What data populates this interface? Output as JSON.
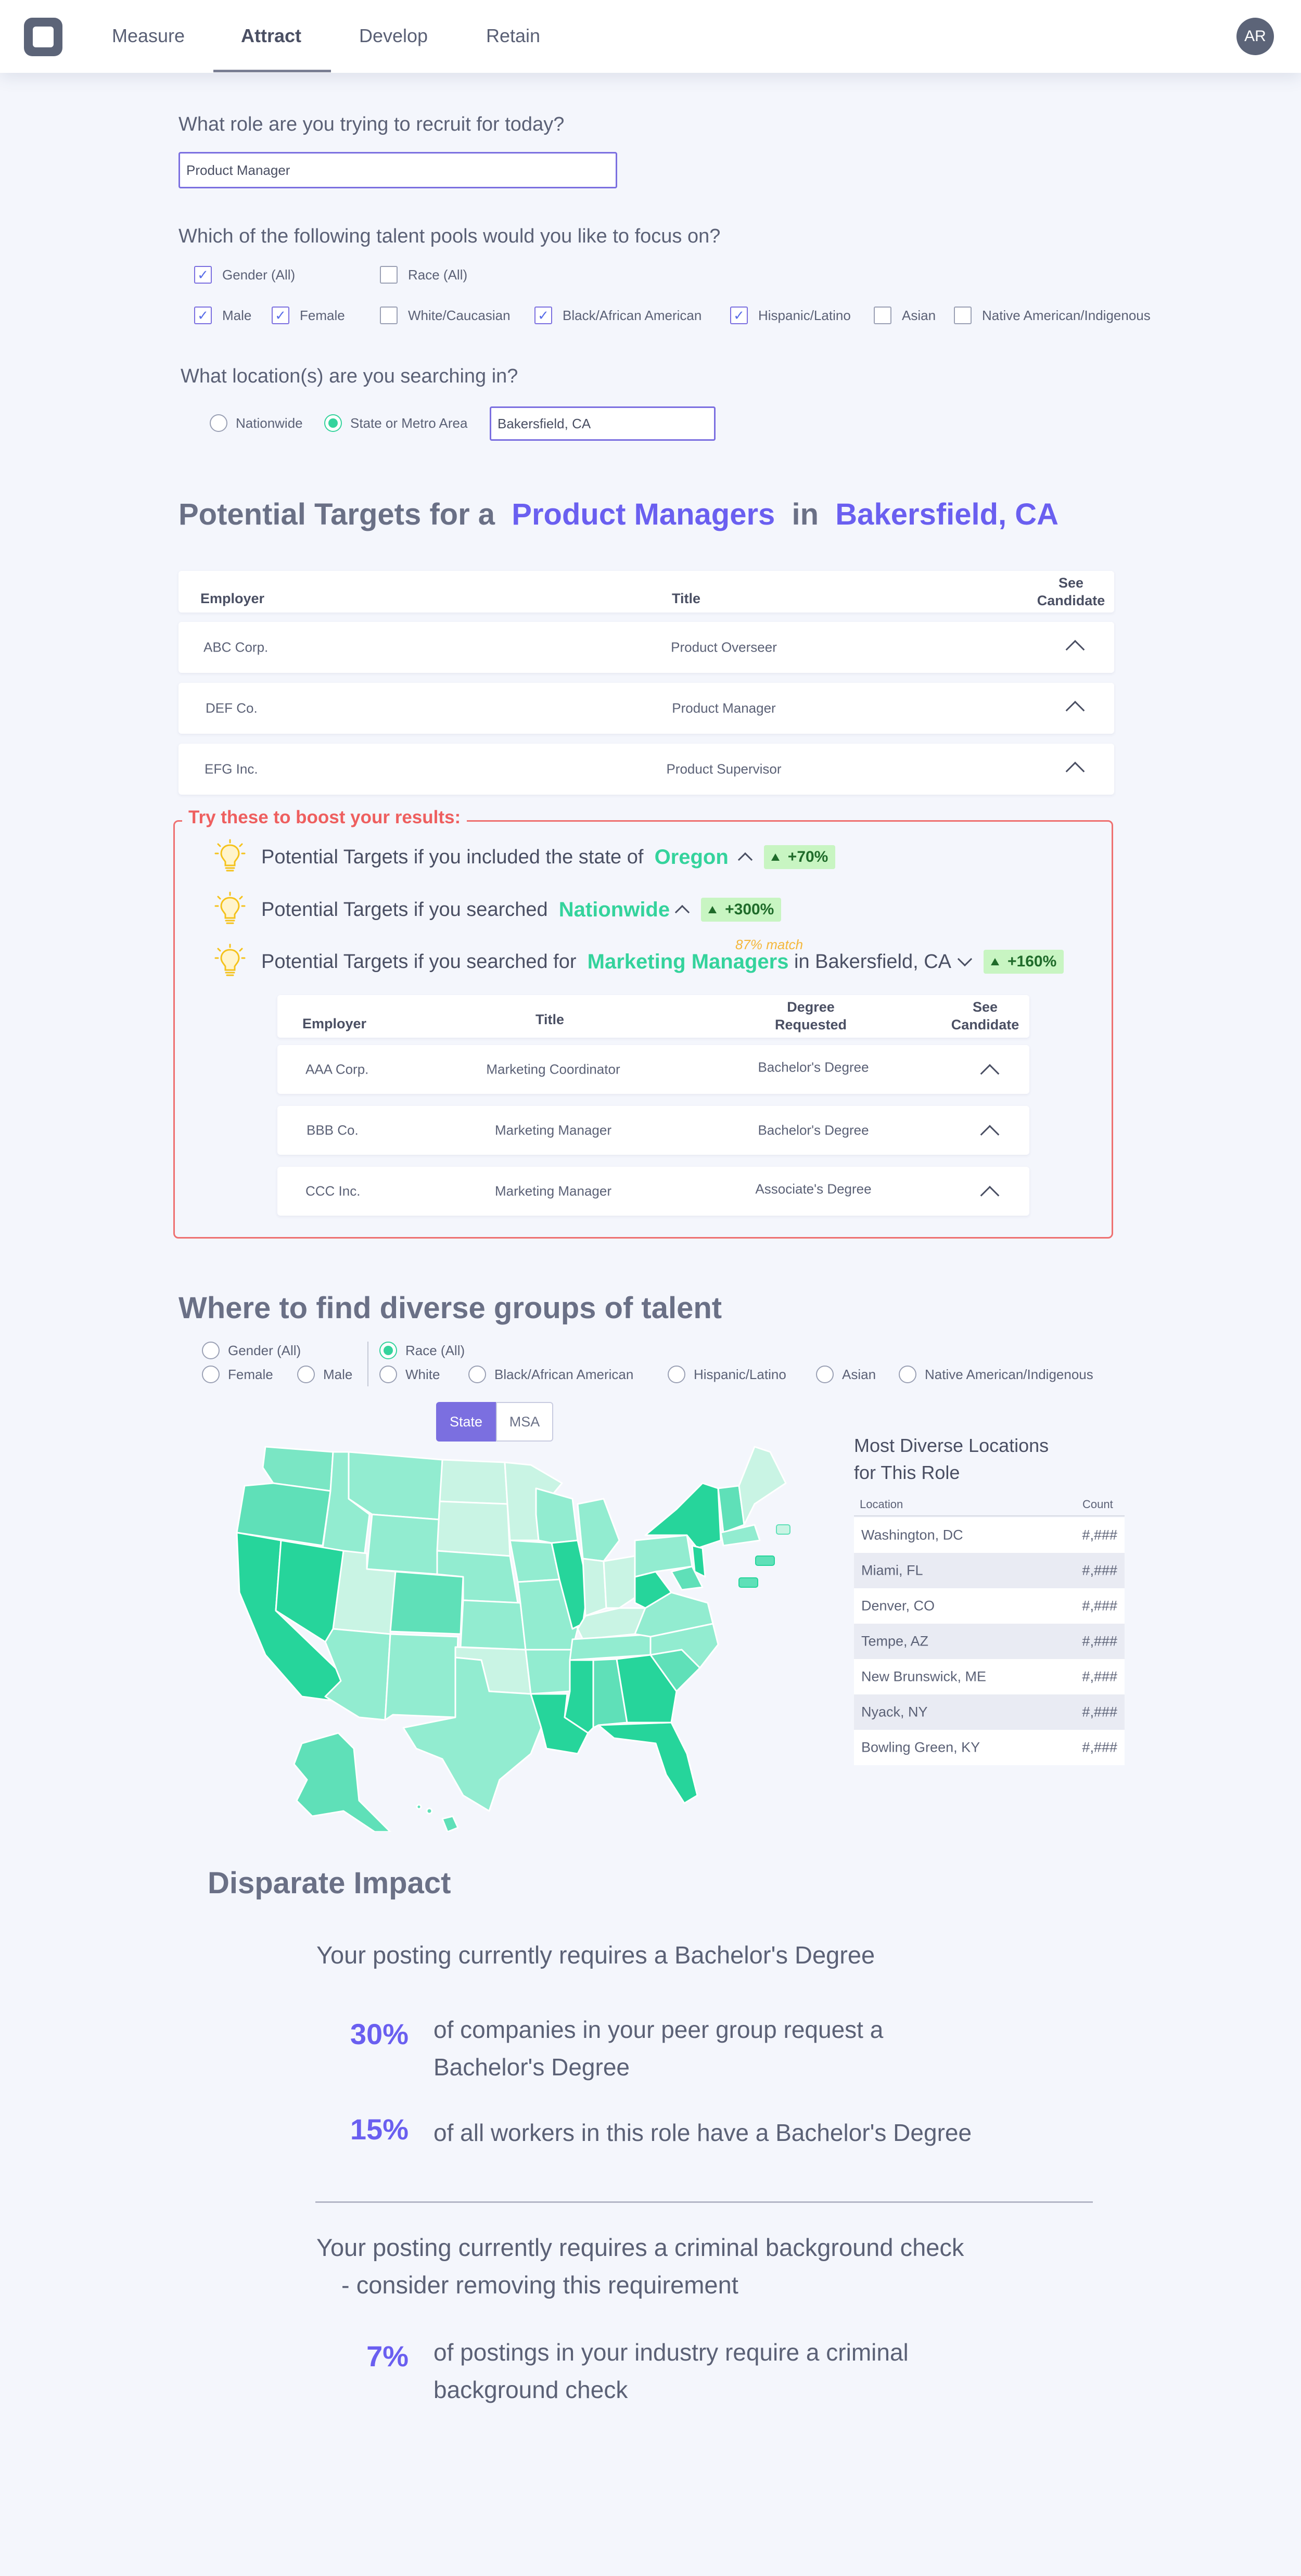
{
  "nav": {
    "tabs": [
      "Measure",
      "Attract",
      "Develop",
      "Retain"
    ],
    "active": "Attract",
    "avatar": "AR"
  },
  "role": {
    "question": "What role are you trying to recruit for today?",
    "value": "Product Manager"
  },
  "pools": {
    "question": "Which of the following talent pools would you like to focus on?",
    "gender_all": {
      "label": "Gender (All)",
      "checked": true
    },
    "race_all": {
      "label": "Race (All)",
      "checked": false
    },
    "items": [
      {
        "label": "Male",
        "checked": true
      },
      {
        "label": "Female",
        "checked": true
      },
      {
        "label": "White/Caucasian",
        "checked": false
      },
      {
        "label": "Black/African American",
        "checked": true
      },
      {
        "label": "Hispanic/Latino",
        "checked": true
      },
      {
        "label": "Asian",
        "checked": false
      },
      {
        "label": "Native American/Indigenous",
        "checked": false
      }
    ]
  },
  "location": {
    "question": "What location(s) are you searching in?",
    "nationwide": "Nationwide",
    "state_metro": "State or Metro Area",
    "value": "Bakersfield, CA"
  },
  "targets": {
    "prefix": "Potential Targets for a",
    "role": "Product Managers",
    "in": "in",
    "place": "Bakersfield, CA",
    "headers": {
      "employer": "Employer",
      "title": "Title",
      "see": "See Candidate"
    },
    "rows": [
      {
        "employer": "ABC Corp.",
        "title": "Product Overseer"
      },
      {
        "employer": "DEF Co.",
        "title": "Product Manager"
      },
      {
        "employer": "EFG Inc.",
        "title": "Product Supervisor"
      }
    ]
  },
  "boost": {
    "title": "Try these to boost your results:",
    "tip1": {
      "text": "Potential Targets if you included the state of",
      "highlight": "Oregon",
      "badge": "+70%"
    },
    "tip2": {
      "text": "Potential Targets if you searched",
      "highlight": "Nationwide",
      "badge": "+300%"
    },
    "tip3": {
      "text": "Potential Targets if you searched for",
      "highlight": "Marketing Managers",
      "suffix": "in Bakersfield, CA",
      "badge": "+160%",
      "match": "87% match"
    },
    "headers": {
      "employer": "Employer",
      "title": "Title",
      "degree": "Degree Requested",
      "see": "See Candidate"
    },
    "rows": [
      {
        "employer": "AAA Corp.",
        "title": "Marketing Coordinator",
        "degree": "Bachelor's Degree"
      },
      {
        "employer": "BBB Co.",
        "title": "Marketing Manager",
        "degree": "Bachelor's Degree"
      },
      {
        "employer": "CCC Inc.",
        "title": "Marketing Manager",
        "degree": "Associate's Degree"
      }
    ]
  },
  "diverse": {
    "title": "Where to find diverse groups of talent",
    "gender_all": "Gender (All)",
    "female": "Female",
    "male": "Male",
    "race_all": "Race (All)",
    "race_items": [
      "White",
      "Black/African American",
      "Hispanic/Latino",
      "Asian",
      "Native American/Indigenous"
    ],
    "toggle": {
      "state": "State",
      "msa": "MSA"
    },
    "locations_title_1": "Most Diverse Locations",
    "locations_title_2": "for This Role",
    "col_location": "Location",
    "col_count": "Count",
    "locations": [
      {
        "name": "Washington, DC",
        "count": "#,###"
      },
      {
        "name": "Miami, FL",
        "count": "#,###"
      },
      {
        "name": "Denver, CO",
        "count": "#,###"
      },
      {
        "name": "Tempe, AZ",
        "count": "#,###"
      },
      {
        "name": "New Brunswick, ME",
        "count": "#,###"
      },
      {
        "name": "Nyack, NY",
        "count": "#,###"
      },
      {
        "name": "Bowling Green, KY",
        "count": "#,###"
      }
    ],
    "colors": {
      "light": "#c9f4e4",
      "mid": "#92ecd0",
      "strong": "#5fe0b8",
      "dark": "#26d59b"
    }
  },
  "impact": {
    "title": "Disparate Impact",
    "line1": "Your posting currently requires a Bachelor's Degree",
    "stat1_num": "30%",
    "stat1_a": "of companies in your peer group request a",
    "stat1_b": "Bachelor's Degree",
    "stat2_num": "15%",
    "stat2": "of all workers in this role have a Bachelor's Degree",
    "line2": "Your posting currently requires a criminal background check",
    "line2_b": "- consider removing this requirement",
    "stat3_num": "7%",
    "stat3_a": "of postings in your industry require a criminal",
    "stat3_b": "background check"
  }
}
